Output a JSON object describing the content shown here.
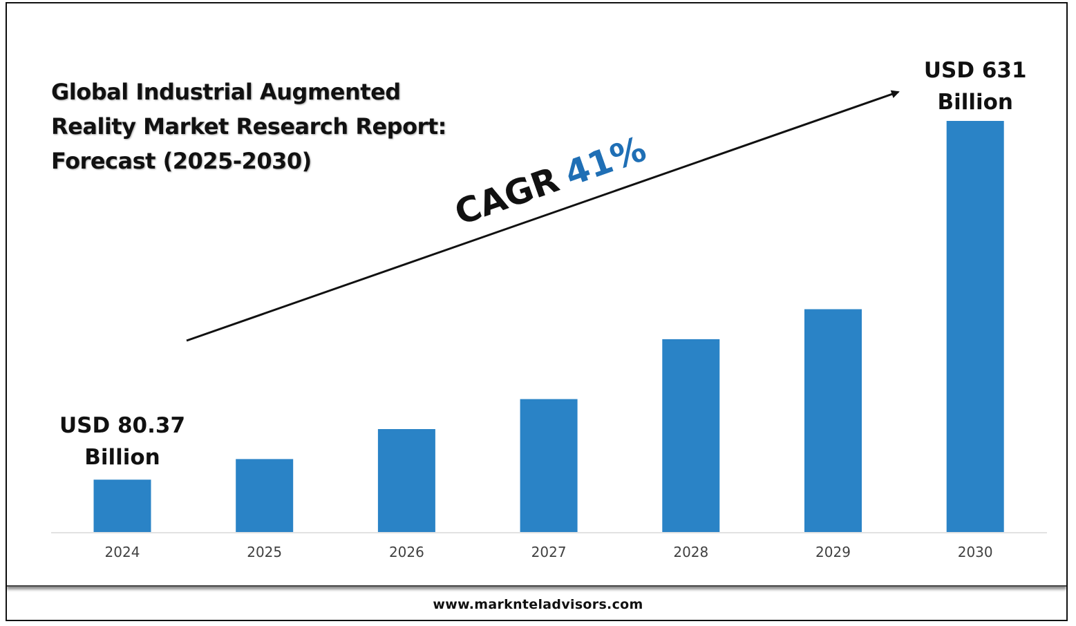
{
  "title_lines": [
    "Global Industrial Augmented",
    "Reality Market Research Report:",
    "Forecast (2025-2030)"
  ],
  "cagr": {
    "prefix": "CAGR",
    "value": "41%"
  },
  "footer": {
    "url": "www.marknteladvisors.com"
  },
  "colors": {
    "bar": "#2A83C6",
    "cagr_value": "#1F6FB5",
    "text": "#111111",
    "axis": "#D9D9D9",
    "tick_text": "#404040"
  },
  "chart_data": {
    "type": "bar",
    "categories": [
      "2024",
      "2025",
      "2026",
      "2027",
      "2028",
      "2029",
      "2030"
    ],
    "values": [
      80.37,
      112,
      158,
      204,
      296,
      342,
      631
    ],
    "ylim": [
      0,
      650
    ],
    "grid": false,
    "annotations": [
      {
        "category": "2024",
        "lines": [
          "USD 80.37",
          "Billion"
        ]
      },
      {
        "category": "2030",
        "lines": [
          "USD 631",
          "Billion"
        ]
      }
    ]
  }
}
